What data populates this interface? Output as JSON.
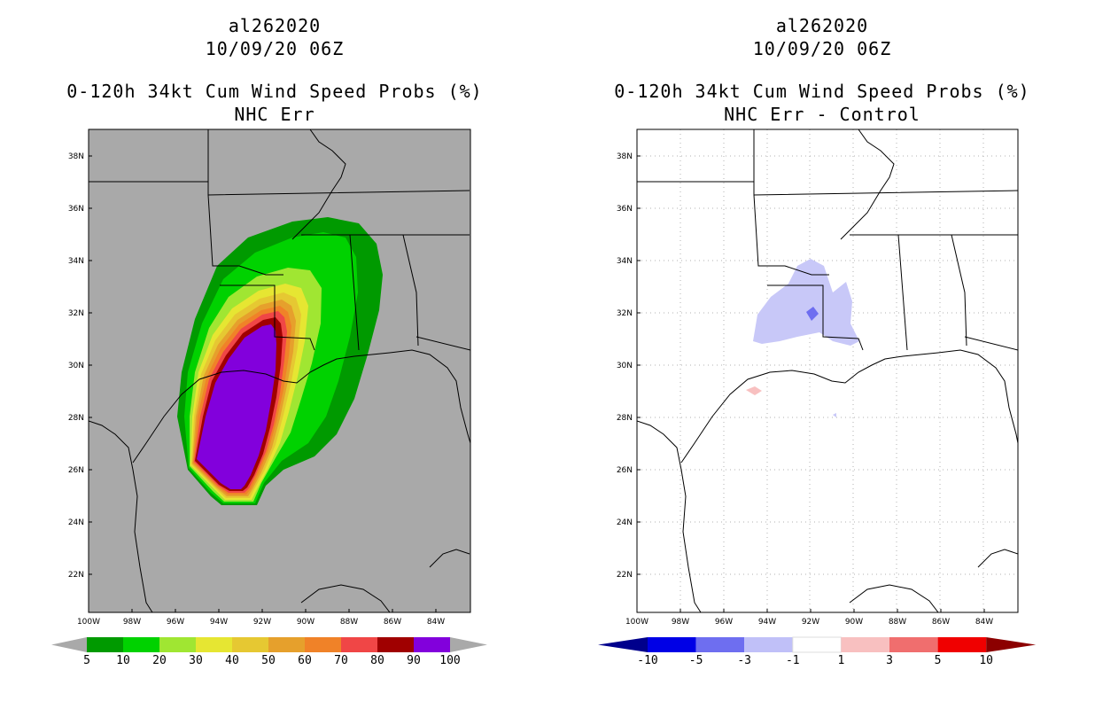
{
  "left_panel": {
    "storm_id": "al262020",
    "datetime": "10/09/20 06Z",
    "product": "0-120h 34kt Cum Wind Speed Probs (%)",
    "subtitle": "NHC Err",
    "colorbar": {
      "labels": [
        "5",
        "10",
        "20",
        "30",
        "40",
        "50",
        "60",
        "70",
        "80",
        "90",
        "100"
      ],
      "colors": [
        "#009a00",
        "#00d200",
        "#a0e632",
        "#e6e632",
        "#e6c832",
        "#e6a02c",
        "#f08228",
        "#f04646",
        "#a00000",
        "#8200dc"
      ],
      "end_color": "#a9a9a9"
    }
  },
  "right_panel": {
    "storm_id": "al262020",
    "datetime": "10/09/20 06Z",
    "product": "0-120h 34kt Cum Wind Speed Probs (%)",
    "subtitle": "NHC Err - Control",
    "colorbar": {
      "labels": [
        "-10",
        "-5",
        "-3",
        "-1",
        "1",
        "3",
        "5",
        "10"
      ],
      "colors": [
        "#0000e6",
        "#6e6ef0",
        "#c0c0f8",
        "#ffffff",
        "#f8c0c0",
        "#f06e6e",
        "#f00000"
      ],
      "low_end_color": "#00008c",
      "high_end_color": "#8c0000"
    }
  },
  "map_axes": {
    "lat_labels": [
      "38N",
      "36N",
      "34N",
      "32N",
      "30N",
      "28N",
      "26N",
      "24N",
      "22N"
    ],
    "lon_labels": [
      "100W",
      "98W",
      "96W",
      "94W",
      "92W",
      "90W",
      "88W",
      "86W",
      "84W"
    ]
  }
}
